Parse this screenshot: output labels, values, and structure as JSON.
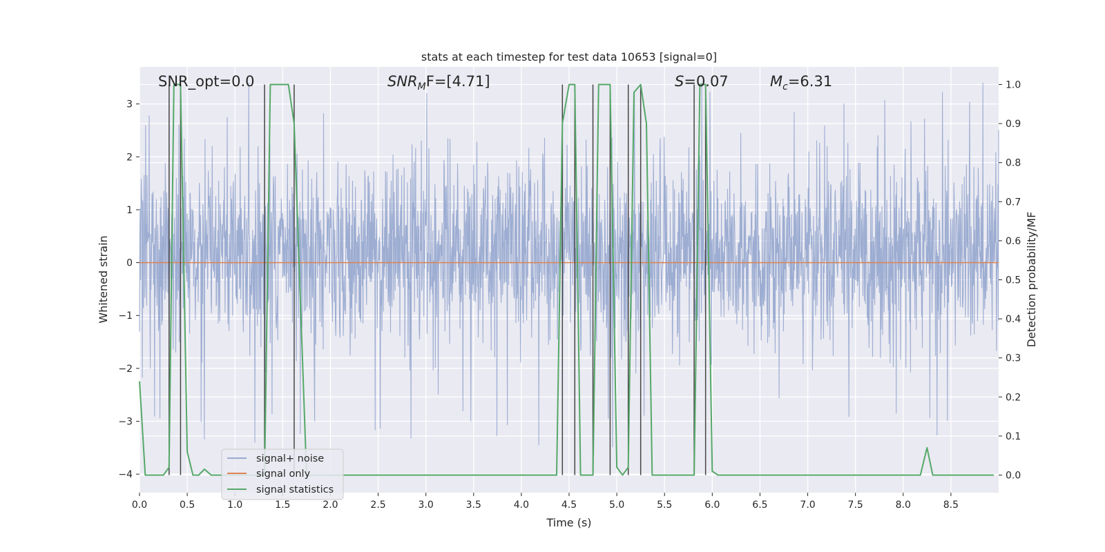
{
  "chart_data": {
    "type": "line",
    "title": "stats at each timestep for test data 10653 [signal=0]",
    "xlabel": "Time (s)",
    "ylabel_left": "Whitened strain",
    "ylabel_right": "Detection probability/MF",
    "xlim": [
      0.0,
      9.0
    ],
    "ylim_left": [
      -4.35,
      3.7
    ],
    "ylim_right": [
      -0.045,
      1.045
    ],
    "x_ticks": [
      "0.0",
      "0.5",
      "1.0",
      "1.5",
      "2.0",
      "2.5",
      "3.0",
      "3.5",
      "4.0",
      "4.5",
      "5.0",
      "5.5",
      "6.0",
      "6.5",
      "7.0",
      "7.5",
      "8.0",
      "8.5"
    ],
    "y_left_ticks": [
      "3",
      "2",
      "1",
      "0",
      "−1",
      "−2",
      "−3",
      "−4"
    ],
    "y_right_ticks": [
      "1.0",
      "0.9",
      "0.8",
      "0.7",
      "0.6",
      "0.5",
      "0.4",
      "0.3",
      "0.2",
      "0.1",
      "0.0"
    ],
    "grid": true,
    "legend_position": "lower-left",
    "annotations": {
      "snr_opt": "SNR_opt=0.0",
      "snr_mf_main": "SNR",
      "snr_mf_sub": "M",
      "snr_mf_rest": "F=[4.71]",
      "s_main": "S",
      "s_rest": "=0.07",
      "mc_main": "M",
      "mc_sub": "c",
      "mc_rest": "=6.31"
    },
    "series": [
      {
        "name": "signal+ noise",
        "color": "#99aad0",
        "duration": 9.0,
        "sample_rate_hz": 2048,
        "envelope_max": 3.4,
        "envelope_min": -3.5,
        "typical_range": [
          -1.8,
          2.2
        ]
      },
      {
        "name": "signal only",
        "color": "#dd8452",
        "x": [
          0.0,
          9.0
        ],
        "y": [
          0.0,
          0.0
        ]
      },
      {
        "name": "signal statistics",
        "color": "#55a868",
        "x": [
          0.0,
          0.06,
          0.25,
          0.31,
          0.36,
          0.43,
          0.5,
          0.56,
          0.62,
          0.68,
          0.75,
          1.31,
          1.37,
          1.56,
          1.62,
          1.75,
          4.37,
          4.43,
          4.5,
          4.56,
          4.62,
          4.68,
          4.75,
          4.81,
          4.93,
          5.0,
          5.06,
          5.12,
          5.18,
          5.25,
          5.31,
          5.37,
          5.75,
          5.81,
          5.87,
          5.93,
          6.0,
          6.06,
          8.18,
          8.25,
          8.31,
          8.95
        ],
        "y": [
          0.24,
          0.0,
          0.0,
          0.02,
          1.0,
          1.0,
          0.06,
          0.0,
          0.0,
          0.015,
          0.0,
          0.0,
          1.0,
          1.0,
          0.9,
          0.0,
          0.0,
          0.9,
          1.0,
          1.0,
          0.0,
          0.0,
          0.0,
          1.0,
          1.0,
          0.02,
          0.0,
          0.02,
          0.98,
          1.0,
          0.9,
          0.0,
          0.0,
          0.0,
          1.0,
          1.0,
          0.01,
          0.0,
          0.0,
          0.07,
          0.0,
          0.0
        ]
      },
      {
        "name": "markers",
        "color": "#444444",
        "x": [
          0.31,
          0.43,
          1.31,
          1.62,
          4.43,
          4.56,
          4.75,
          4.93,
          5.12,
          5.25,
          5.81,
          5.93
        ]
      }
    ]
  }
}
